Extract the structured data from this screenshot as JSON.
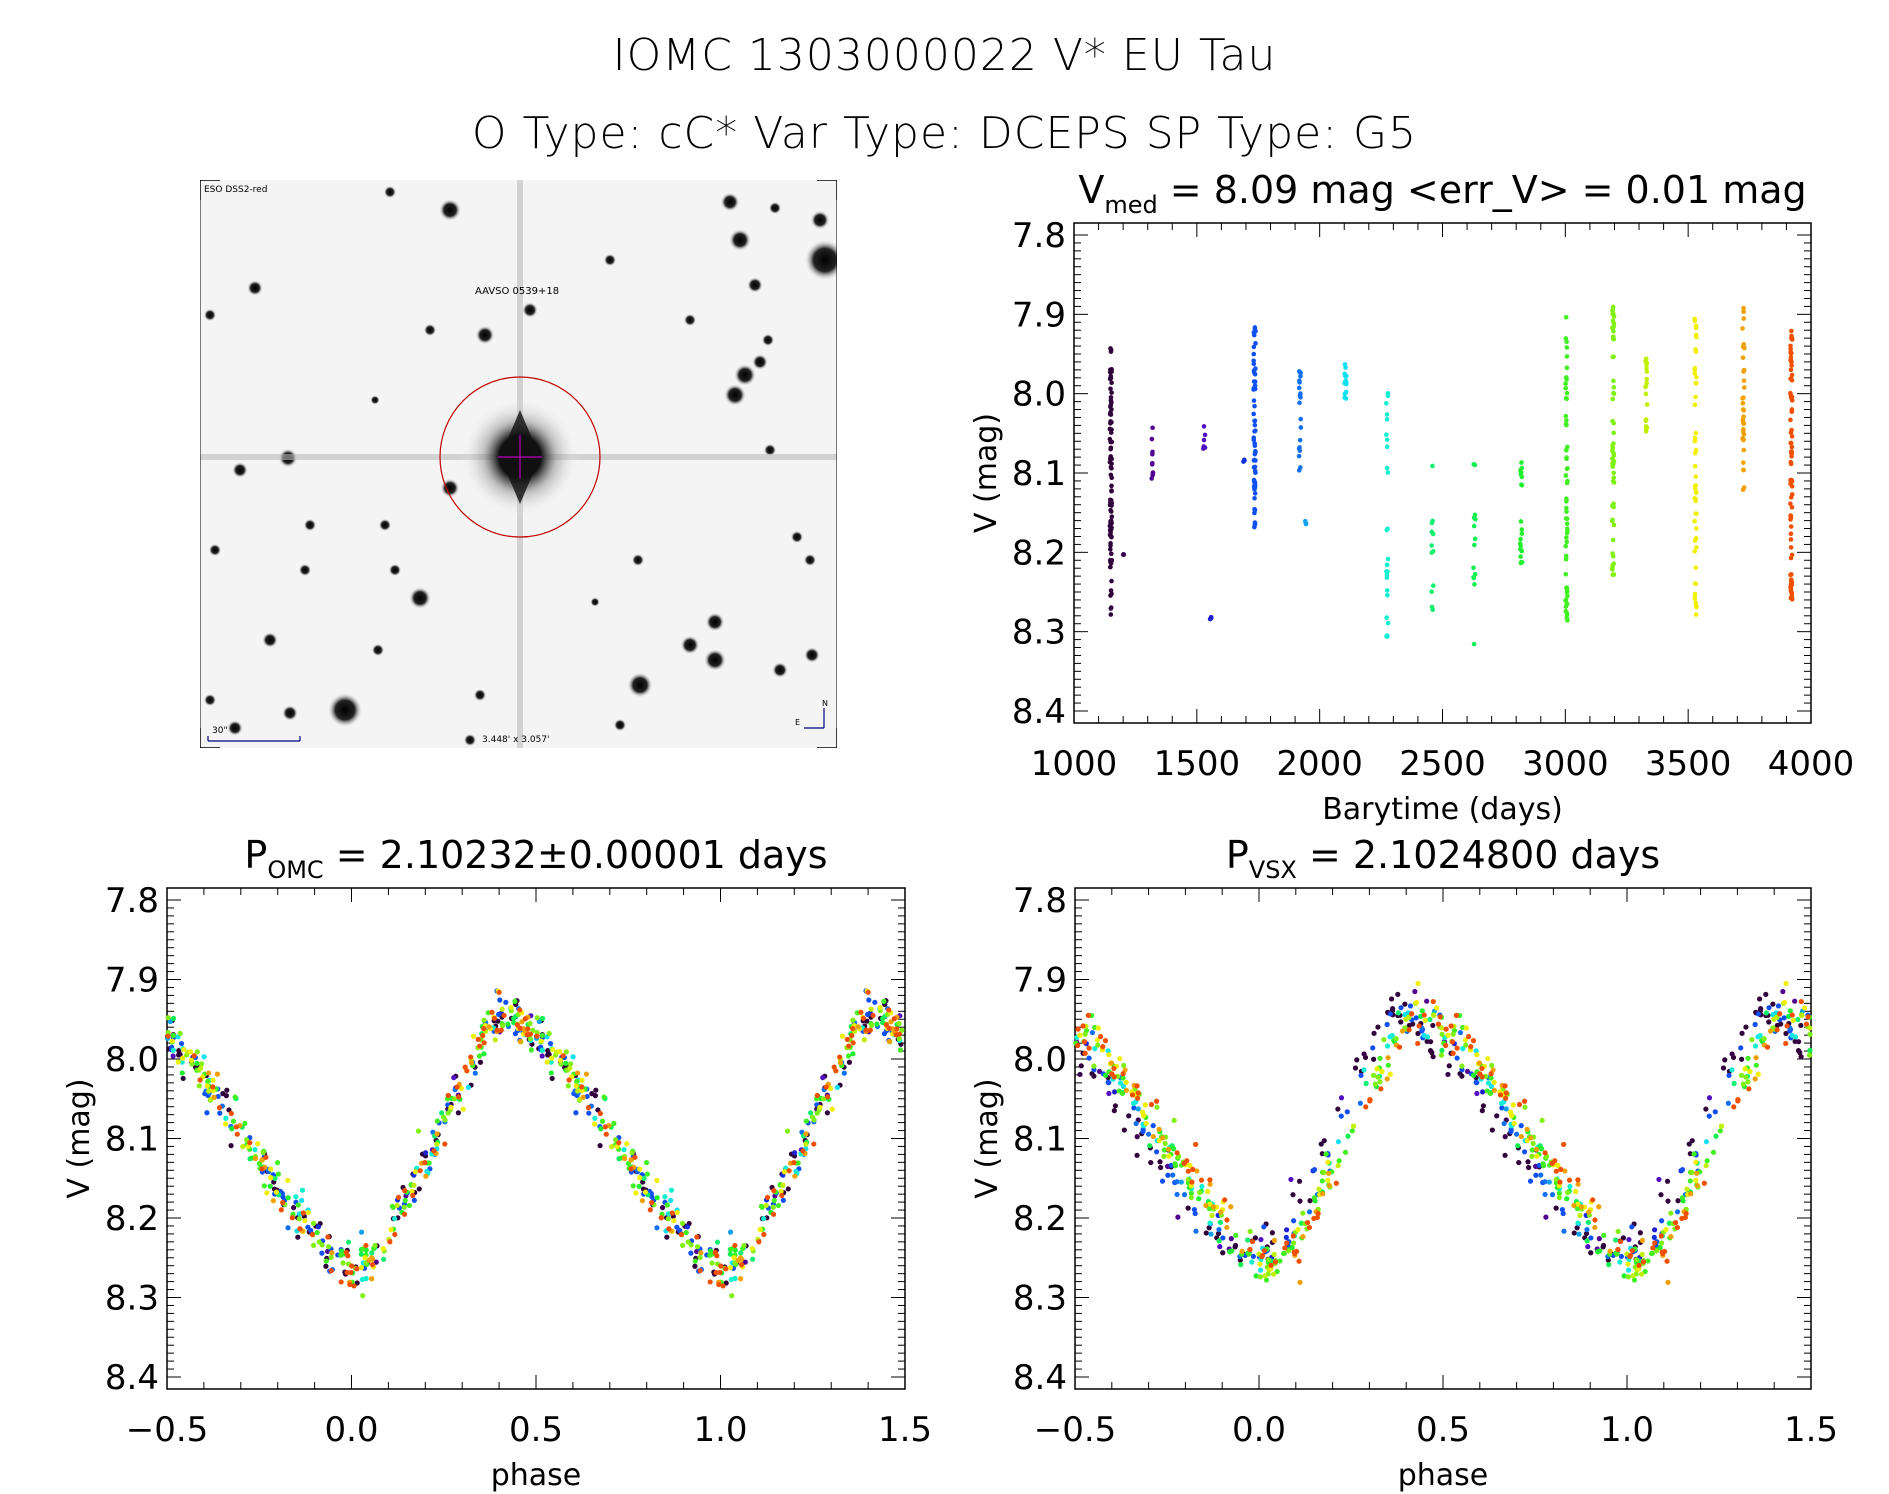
{
  "header": {
    "title_line1": "IOMC 1303000022    V* EU Tau",
    "title_line2": "O Type: cC*  Var Type: DCEPS  SP Type: G5"
  },
  "finder_chart": {
    "survey_label": "ESO DSS2-red",
    "target_label": "AAVSO 0539+18",
    "scale_bar_label": "30\"",
    "field_size_label": "3.448' x 3.057'",
    "north_label": "N",
    "east_label": "E",
    "colors": {
      "labels": "#000080",
      "target_label": "#c00000",
      "circle": "#c00000",
      "crosshair": "#a000a0"
    }
  },
  "chart_data": [
    {
      "type": "scatter",
      "id": "light-curve",
      "title_main": "V",
      "title_sub": "med",
      "title_rest": " = 8.09 mag <err_V> = 0.01 mag",
      "xlabel": "Barytime (days)",
      "ylabel": "V (mag)",
      "xlim": [
        1000,
        4000
      ],
      "ylim": [
        8.4,
        7.8
      ],
      "y_inverted": true,
      "xticks": [
        1000,
        1500,
        2000,
        2500,
        3000,
        3500,
        4000
      ],
      "xtick_labels": [
        "1000",
        "1500",
        "2000",
        "2500",
        "3000",
        "3500",
        "4000"
      ],
      "yticks": [
        7.8,
        7.9,
        8.0,
        8.1,
        8.2,
        8.3,
        8.4
      ],
      "ytick_labels": [
        "7.8",
        "7.9",
        "8.0",
        "8.1",
        "8.2",
        "8.3",
        "8.4"
      ],
      "grid": false,
      "seasons": [
        {
          "t": 1150,
          "vmin": 7.94,
          "vmax": 8.28,
          "n": 90,
          "color": "#30003a"
        },
        {
          "t": 1200,
          "vmin": 8.2,
          "vmax": 8.21,
          "n": 3,
          "color": "#3a0050"
        },
        {
          "t": 1320,
          "vmin": 8.03,
          "vmax": 8.13,
          "n": 10,
          "color": "#500090"
        },
        {
          "t": 1530,
          "vmin": 8.04,
          "vmax": 8.07,
          "n": 6,
          "color": "#5010c0"
        },
        {
          "t": 1555,
          "vmin": 8.28,
          "vmax": 8.29,
          "n": 3,
          "color": "#2020d0"
        },
        {
          "t": 1690,
          "vmin": 8.07,
          "vmax": 8.09,
          "n": 3,
          "color": "#1030e0"
        },
        {
          "t": 1735,
          "vmin": 7.91,
          "vmax": 8.17,
          "n": 60,
          "color": "#1050f0"
        },
        {
          "t": 1920,
          "vmin": 7.97,
          "vmax": 8.12,
          "n": 20,
          "color": "#1070f0"
        },
        {
          "t": 1945,
          "vmin": 8.16,
          "vmax": 8.17,
          "n": 3,
          "color": "#10a0f0"
        },
        {
          "t": 2105,
          "vmin": 7.96,
          "vmax": 8.01,
          "n": 15,
          "color": "#10e0f0"
        },
        {
          "t": 2275,
          "vmin": 7.95,
          "vmax": 8.32,
          "n": 25,
          "color": "#10f0d0"
        },
        {
          "t": 2460,
          "vmin": 8.09,
          "vmax": 8.28,
          "n": 12,
          "color": "#10f070"
        },
        {
          "t": 2630,
          "vmin": 8.07,
          "vmax": 8.34,
          "n": 14,
          "color": "#10f050"
        },
        {
          "t": 2820,
          "vmin": 8.07,
          "vmax": 8.23,
          "n": 20,
          "color": "#20f030"
        },
        {
          "t": 3005,
          "vmin": 7.9,
          "vmax": 8.29,
          "n": 60,
          "color": "#40f020"
        },
        {
          "t": 3195,
          "vmin": 7.89,
          "vmax": 8.26,
          "n": 60,
          "color": "#80f010"
        },
        {
          "t": 3330,
          "vmin": 7.94,
          "vmax": 8.05,
          "n": 18,
          "color": "#c0f000"
        },
        {
          "t": 3530,
          "vmin": 7.9,
          "vmax": 8.28,
          "n": 50,
          "color": "#f0f000"
        },
        {
          "t": 3725,
          "vmin": 7.89,
          "vmax": 8.14,
          "n": 35,
          "color": "#f0a000"
        },
        {
          "t": 3920,
          "vmin": 7.92,
          "vmax": 8.27,
          "n": 80,
          "color": "#f05000"
        }
      ]
    },
    {
      "type": "scatter",
      "id": "phase-omc",
      "title_main": "P",
      "title_sub": "OMC",
      "title_rest": " = 2.10232±0.00001 days",
      "xlabel": "phase",
      "ylabel": "V (mag)",
      "xlim": [
        -0.5,
        1.5
      ],
      "ylim": [
        8.4,
        7.8
      ],
      "y_inverted": true,
      "xticks": [
        -0.5,
        0.0,
        0.5,
        1.0,
        1.5
      ],
      "xtick_labels": [
        "−0.5",
        "0.0",
        "0.5",
        "1.0",
        "1.5"
      ],
      "yticks": [
        7.8,
        7.9,
        8.0,
        8.1,
        8.2,
        8.3,
        8.4
      ],
      "ytick_labels": [
        "7.8",
        "7.9",
        "8.0",
        "8.1",
        "8.2",
        "8.3",
        "8.4"
      ],
      "grid": false,
      "curve_points": [
        {
          "phase": -0.5,
          "V": 7.97
        },
        {
          "phase": -0.4,
          "V": 8.02
        },
        {
          "phase": -0.3,
          "V": 8.09
        },
        {
          "phase": -0.2,
          "V": 8.16
        },
        {
          "phase": -0.1,
          "V": 8.22
        },
        {
          "phase": 0.0,
          "V": 8.27
        },
        {
          "phase": 0.08,
          "V": 8.24
        },
        {
          "phase": 0.2,
          "V": 8.13
        },
        {
          "phase": 0.3,
          "V": 8.03
        },
        {
          "phase": 0.4,
          "V": 7.94
        },
        {
          "phase": 0.5,
          "V": 7.97
        }
      ],
      "scatter_mag": 0.02
    },
    {
      "type": "scatter",
      "id": "phase-vsx",
      "title_main": "P",
      "title_sub": "VSX",
      "title_rest": " = 2.1024800 days",
      "xlabel": "phase",
      "ylabel": "V (mag)",
      "xlim": [
        -0.5,
        1.5
      ],
      "ylim": [
        8.4,
        7.8
      ],
      "y_inverted": true,
      "xticks": [
        -0.5,
        0.0,
        0.5,
        1.0,
        1.5
      ],
      "xtick_labels": [
        "−0.5",
        "0.0",
        "0.5",
        "1.0",
        "1.5"
      ],
      "yticks": [
        7.8,
        7.9,
        8.0,
        8.1,
        8.2,
        8.3,
        8.4
      ],
      "ytick_labels": [
        "7.8",
        "7.9",
        "8.0",
        "8.1",
        "8.2",
        "8.3",
        "8.4"
      ],
      "grid": false,
      "curve_points": [
        {
          "phase": -0.5,
          "V": 7.96
        },
        {
          "phase": -0.4,
          "V": 8.02
        },
        {
          "phase": -0.3,
          "V": 8.09
        },
        {
          "phase": -0.2,
          "V": 8.16
        },
        {
          "phase": -0.1,
          "V": 8.22
        },
        {
          "phase": 0.0,
          "V": 8.26
        },
        {
          "phase": 0.08,
          "V": 8.23
        },
        {
          "phase": 0.2,
          "V": 8.12
        },
        {
          "phase": 0.3,
          "V": 8.02
        },
        {
          "phase": 0.4,
          "V": 7.94
        },
        {
          "phase": 0.5,
          "V": 7.97
        }
      ],
      "phase_shift_by_season": 0.08,
      "scatter_mag": 0.02
    }
  ]
}
